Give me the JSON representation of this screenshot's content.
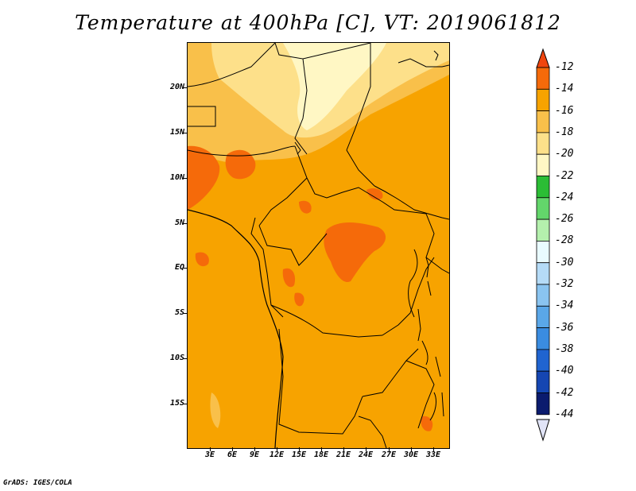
{
  "title": "Temperature at 400hPa [C], VT: 2019061812",
  "credit": "GrADS: IGES/COLA",
  "map": {
    "lat_labels": [
      "20N",
      "15N",
      "10N",
      "5N",
      "EQ",
      "5S",
      "10S",
      "15S"
    ],
    "lon_labels": [
      "3E",
      "6E",
      "9E",
      "12E",
      "15E",
      "18E",
      "21E",
      "24E",
      "27E",
      "30E",
      "33E"
    ]
  },
  "colorbar": {
    "labels": [
      "-12",
      "-14",
      "-16",
      "-18",
      "-20",
      "-22",
      "-24",
      "-26",
      "-28",
      "-30",
      "-32",
      "-34",
      "-36",
      "-38",
      "-40",
      "-42",
      "-44"
    ],
    "colors": [
      "#f0460f",
      "#f56a0a",
      "#f7a300",
      "#f9c04a",
      "#fde08a",
      "#fff7c4",
      "#2bbd35",
      "#63d66b",
      "#b4f0ad",
      "#e9fbff",
      "#b5dbf7",
      "#8ac4f0",
      "#5aa7e8",
      "#3a8ce0",
      "#2064d0",
      "#1546b2",
      "#0b1b6e",
      "#e1e4f7"
    ]
  }
}
